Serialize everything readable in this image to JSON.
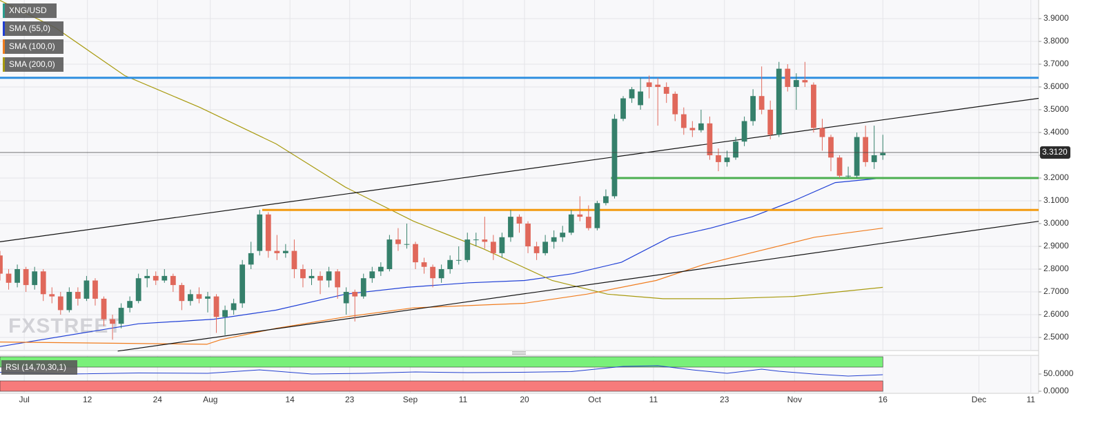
{
  "chart_data": {
    "type": "candlestick",
    "name": "XNG/USD",
    "legend_color": "#2a9d8f",
    "up_color": "#35806b",
    "down_color": "#e0685b",
    "ohlc": [
      [
        2.86,
        2.88,
        2.75,
        2.78
      ],
      [
        2.78,
        2.8,
        2.71,
        2.74
      ],
      [
        2.74,
        2.82,
        2.72,
        2.8
      ],
      [
        2.8,
        2.81,
        2.7,
        2.73
      ],
      [
        2.73,
        2.81,
        2.71,
        2.79
      ],
      [
        2.79,
        2.8,
        2.66,
        2.69
      ],
      [
        2.69,
        2.72,
        2.65,
        2.68
      ],
      [
        2.68,
        2.7,
        2.6,
        2.62
      ],
      [
        2.62,
        2.72,
        2.61,
        2.7
      ],
      [
        2.7,
        2.72,
        2.64,
        2.67
      ],
      [
        2.67,
        2.77,
        2.66,
        2.75
      ],
      [
        2.75,
        2.76,
        2.64,
        2.67
      ],
      [
        2.67,
        2.68,
        2.55,
        2.58
      ],
      [
        2.58,
        2.6,
        2.49,
        2.56
      ],
      [
        2.56,
        2.65,
        2.54,
        2.63
      ],
      [
        2.63,
        2.68,
        2.61,
        2.66
      ],
      [
        2.66,
        2.78,
        2.65,
        2.76
      ],
      [
        2.76,
        2.8,
        2.72,
        2.77
      ],
      [
        2.77,
        2.79,
        2.73,
        2.75
      ],
      [
        2.75,
        2.8,
        2.74,
        2.77
      ],
      [
        2.77,
        2.78,
        2.7,
        2.73
      ],
      [
        2.73,
        2.74,
        2.62,
        2.66
      ],
      [
        2.66,
        2.71,
        2.64,
        2.69
      ],
      [
        2.69,
        2.72,
        2.65,
        2.67
      ],
      [
        2.67,
        2.7,
        2.61,
        2.68
      ],
      [
        2.68,
        2.69,
        2.52,
        2.59
      ],
      [
        2.59,
        2.64,
        2.51,
        2.62
      ],
      [
        2.62,
        2.67,
        2.6,
        2.65
      ],
      [
        2.65,
        2.84,
        2.63,
        2.82
      ],
      [
        2.82,
        2.92,
        2.8,
        2.87
      ],
      [
        2.88,
        3.06,
        2.86,
        3.04
      ],
      [
        3.04,
        3.05,
        2.85,
        2.88
      ],
      [
        2.88,
        2.95,
        2.84,
        2.87
      ],
      [
        2.87,
        2.91,
        2.85,
        2.88
      ],
      [
        2.88,
        2.93,
        2.76,
        2.8
      ],
      [
        2.8,
        2.82,
        2.72,
        2.76
      ],
      [
        2.76,
        2.8,
        2.73,
        2.77
      ],
      [
        2.77,
        2.79,
        2.69,
        2.75
      ],
      [
        2.75,
        2.81,
        2.72,
        2.79
      ],
      [
        2.79,
        2.8,
        2.67,
        2.72
      ],
      [
        2.65,
        2.72,
        2.6,
        2.7
      ],
      [
        2.7,
        2.71,
        2.57,
        2.68
      ],
      [
        2.68,
        2.78,
        2.67,
        2.76
      ],
      [
        2.76,
        2.81,
        2.74,
        2.79
      ],
      [
        2.79,
        2.83,
        2.77,
        2.81
      ],
      [
        2.8,
        2.95,
        2.79,
        2.93
      ],
      [
        2.93,
        2.98,
        2.88,
        2.91
      ],
      [
        2.91,
        3.0,
        2.89,
        2.91
      ],
      [
        2.91,
        2.92,
        2.8,
        2.83
      ],
      [
        2.83,
        2.85,
        2.78,
        2.81
      ],
      [
        2.81,
        2.82,
        2.72,
        2.76
      ],
      [
        2.76,
        2.82,
        2.74,
        2.8
      ],
      [
        2.8,
        2.86,
        2.78,
        2.84
      ],
      [
        2.84,
        2.9,
        2.82,
        2.84
      ],
      [
        2.84,
        2.96,
        2.83,
        2.93
      ],
      [
        2.93,
        2.96,
        2.9,
        2.93
      ],
      [
        2.93,
        3.03,
        2.89,
        2.92
      ],
      [
        2.92,
        2.95,
        2.84,
        2.87
      ],
      [
        2.87,
        2.96,
        2.85,
        2.94
      ],
      [
        2.94,
        3.06,
        2.92,
        3.03
      ],
      [
        3.03,
        3.04,
        2.96,
        3.0
      ],
      [
        3.0,
        3.01,
        2.87,
        2.9
      ],
      [
        2.9,
        2.92,
        2.84,
        2.87
      ],
      [
        2.87,
        2.95,
        2.86,
        2.92
      ],
      [
        2.92,
        2.97,
        2.89,
        2.94
      ],
      [
        2.94,
        2.99,
        2.92,
        2.96
      ],
      [
        2.96,
        3.06,
        2.95,
        3.04
      ],
      [
        3.04,
        3.12,
        3.01,
        3.03
      ],
      [
        3.03,
        3.08,
        2.97,
        2.98
      ],
      [
        2.98,
        3.1,
        2.97,
        3.09
      ],
      [
        3.09,
        3.15,
        3.08,
        3.12
      ],
      [
        3.12,
        3.48,
        3.11,
        3.46
      ],
      [
        3.46,
        3.56,
        3.45,
        3.55
      ],
      [
        3.55,
        3.6,
        3.53,
        3.59
      ],
      [
        3.52,
        3.64,
        3.5,
        3.58
      ],
      [
        3.62,
        3.65,
        3.55,
        3.6
      ],
      [
        3.61,
        3.64,
        3.43,
        3.6
      ],
      [
        3.6,
        3.62,
        3.53,
        3.57
      ],
      [
        3.57,
        3.58,
        3.45,
        3.48
      ],
      [
        3.48,
        3.51,
        3.39,
        3.42
      ],
      [
        3.42,
        3.45,
        3.38,
        3.41
      ],
      [
        3.41,
        3.5,
        3.4,
        3.44
      ],
      [
        3.44,
        3.47,
        3.28,
        3.3
      ],
      [
        3.3,
        3.33,
        3.23,
        3.27
      ],
      [
        3.27,
        3.32,
        3.25,
        3.29
      ],
      [
        3.29,
        3.38,
        3.28,
        3.36
      ],
      [
        3.36,
        3.47,
        3.34,
        3.45
      ],
      [
        3.45,
        3.59,
        3.43,
        3.56
      ],
      [
        3.56,
        3.69,
        3.48,
        3.5
      ],
      [
        3.5,
        3.54,
        3.37,
        3.39
      ],
      [
        3.39,
        3.71,
        3.38,
        3.68
      ],
      [
        3.68,
        3.7,
        3.58,
        3.6
      ],
      [
        3.6,
        3.66,
        3.5,
        3.63
      ],
      [
        3.63,
        3.71,
        3.6,
        3.62
      ],
      [
        3.61,
        3.62,
        3.4,
        3.42
      ],
      [
        3.42,
        3.46,
        3.32,
        3.38
      ],
      [
        3.38,
        3.39,
        3.23,
        3.29
      ],
      [
        3.29,
        3.3,
        3.2,
        3.21
      ],
      [
        3.21,
        3.25,
        3.2,
        3.21
      ],
      [
        3.21,
        3.4,
        3.2,
        3.38
      ],
      [
        3.38,
        3.43,
        3.25,
        3.27
      ],
      [
        3.27,
        3.43,
        3.24,
        3.3
      ],
      [
        3.3,
        3.39,
        3.28,
        3.31
      ]
    ],
    "xlim": [
      0,
      120
    ],
    "xticks": [
      {
        "value": 2.8,
        "label": "Jul"
      },
      {
        "value": 10.1,
        "label": "12"
      },
      {
        "value": 18.2,
        "label": "24"
      },
      {
        "value": 24.3,
        "label": "Aug"
      },
      {
        "value": 33.5,
        "label": "14"
      },
      {
        "value": 40.4,
        "label": "23"
      },
      {
        "value": 47.4,
        "label": "Sep"
      },
      {
        "value": 53.5,
        "label": "11"
      },
      {
        "value": 60.6,
        "label": "20"
      },
      {
        "value": 68.7,
        "label": "Oct"
      },
      {
        "value": 75.5,
        "label": "11"
      },
      {
        "value": 83.7,
        "label": "23"
      },
      {
        "value": 91.8,
        "label": "Nov"
      },
      {
        "value": 102,
        "label": "16"
      },
      {
        "value": 113.1,
        "label": "Dec"
      },
      {
        "value": 119.1,
        "label": "11"
      }
    ],
    "ylim": [
      2.4424,
      3.9818
    ],
    "yticks": [
      {
        "value": 2.5,
        "label": "2.5000"
      },
      {
        "value": 2.6,
        "label": "2.6000"
      },
      {
        "value": 2.7,
        "label": "2.7000"
      },
      {
        "value": 2.8,
        "label": "2.8000"
      },
      {
        "value": 2.9,
        "label": "2.9000"
      },
      {
        "value": 3.0,
        "label": "3.0000"
      },
      {
        "value": 3.1,
        "label": "3.1000"
      },
      {
        "value": 3.2,
        "label": "3.2000"
      },
      {
        "value": 3.3,
        "label": "3.3000"
      },
      {
        "value": 3.4,
        "label": "3.4000"
      },
      {
        "value": 3.5,
        "label": "3.5000"
      },
      {
        "value": 3.6,
        "label": "3.6000"
      },
      {
        "value": 3.7,
        "label": "3.7000"
      },
      {
        "value": 3.8,
        "label": "3.8000"
      },
      {
        "value": 3.9,
        "label": "3.9000"
      }
    ],
    "grid": true,
    "series": [
      {
        "name": "SMA (55,0)",
        "color": "#1f3fd6",
        "x": [
          0,
          16,
          24.7,
          31.9,
          39.9,
          47,
          54.2,
          60.6,
          66.2,
          71.8,
          77.4,
          82.1,
          86.9,
          91.7,
          96.5,
          102
        ],
        "values": [
          2.46,
          2.56,
          2.58,
          2.62,
          2.69,
          2.72,
          2.74,
          2.75,
          2.78,
          2.83,
          2.94,
          2.98,
          3.03,
          3.1,
          3.18,
          3.2
        ]
      },
      {
        "name": "SMA (100,0)",
        "color": "#f07c1e",
        "x": [
          0,
          23.9,
          25.5,
          31.9,
          39.9,
          47.8,
          60.6,
          67.8,
          75.8,
          81.3,
          87.7,
          94.1,
          102
        ],
        "values": [
          2.48,
          2.47,
          2.49,
          2.54,
          2.59,
          2.63,
          2.65,
          2.69,
          2.75,
          2.82,
          2.88,
          2.94,
          2.98
        ]
      },
      {
        "name": "SMA (200,0)",
        "color": "#a89a0e",
        "x": [
          0,
          6.4,
          14.4,
          23.1,
          31.9,
          39.9,
          47.8,
          55.8,
          63.8,
          70.2,
          76.6,
          83.7,
          91.7,
          102
        ],
        "values": [
          3.98,
          3.86,
          3.65,
          3.51,
          3.35,
          3.16,
          3.01,
          2.89,
          2.75,
          2.69,
          2.67,
          2.67,
          2.68,
          2.72
        ]
      }
    ],
    "levels": [
      {
        "value": 3.64,
        "color": "#2f8fe0",
        "x_start": 0
      },
      {
        "value": 3.2,
        "color": "#4caf50",
        "x_start": 70.6
      },
      {
        "value": 3.06,
        "color": "#f39a0f",
        "x_start": 30.3
      }
    ],
    "trendlines": [
      {
        "color": "#111111",
        "x": [
          0,
          120
        ],
        "values": [
          2.92,
          3.55
        ]
      },
      {
        "color": "#111111",
        "x": [
          13.6,
          120
        ],
        "values": [
          2.44,
          3.01
        ]
      }
    ],
    "last_price": 3.312,
    "last_price_label": "3.3120",
    "watermark": "FXSTREET",
    "rsi": {
      "name": "RSI (14,70,30,1)",
      "color": "#2340d0",
      "x": [
        0,
        8,
        16,
        24,
        30,
        36,
        42,
        48,
        54,
        60,
        66,
        72,
        76,
        80,
        84,
        88,
        90,
        94,
        98,
        102
      ],
      "values": [
        55,
        50,
        53,
        52,
        62,
        50,
        52,
        56,
        54,
        55,
        57,
        72,
        74,
        62,
        52,
        64,
        58,
        50,
        44,
        48
      ],
      "ylim": [
        -6,
        104
      ],
      "yticks": [
        {
          "value": 50,
          "label": "50.0000"
        },
        {
          "value": 0,
          "label": "0.0000"
        }
      ],
      "upper_band": [
        70,
        100
      ],
      "lower_band": [
        0,
        30
      ],
      "upper_color": "#79f07a",
      "lower_color": "#f77b7b",
      "x_end": 102
    }
  }
}
